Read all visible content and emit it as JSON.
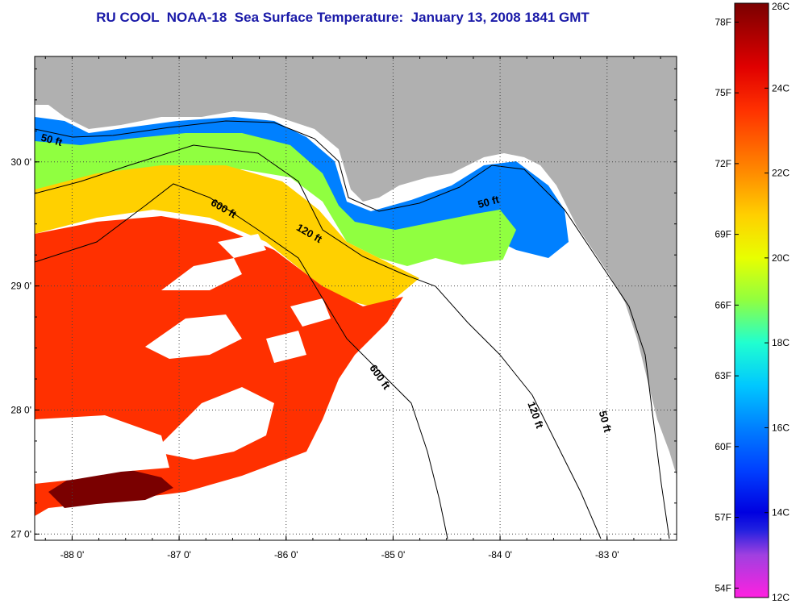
{
  "title": "RU COOL  NOAA-18  Sea Surface Temperature:  January 13, 2008 1841 GMT",
  "map": {
    "lon_range": [
      -88.35,
      -82.35
    ],
    "lat_range": [
      26.95,
      30.85
    ],
    "lon_ticks": [
      {
        "value": -88,
        "label": "-88 0'"
      },
      {
        "value": -87,
        "label": "-87 0'"
      },
      {
        "value": -86,
        "label": "-86 0'"
      },
      {
        "value": -85,
        "label": "-85 0'"
      },
      {
        "value": -84,
        "label": "-84 0'"
      },
      {
        "value": -83,
        "label": "-83 0'"
      }
    ],
    "lat_ticks": [
      {
        "value": 30,
        "label": "30 0'"
      },
      {
        "value": 29,
        "label": "29 0'"
      },
      {
        "value": 28,
        "label": "28 0'"
      },
      {
        "value": 27,
        "label": "27 0'"
      }
    ],
    "contour_labels": [
      {
        "text": "50 ft",
        "lon": -88.2,
        "lat": 30.15,
        "rotate": 15
      },
      {
        "text": "600 ft",
        "lon": -86.6,
        "lat": 29.6,
        "rotate": 30
      },
      {
        "text": "120 ft",
        "lon": -85.8,
        "lat": 29.4,
        "rotate": 30
      },
      {
        "text": "50 ft",
        "lon": -84.1,
        "lat": 29.65,
        "rotate": -15
      },
      {
        "text": "600 ft",
        "lon": -85.15,
        "lat": 28.25,
        "rotate": 55
      },
      {
        "text": "120 ft",
        "lon": -83.7,
        "lat": 27.95,
        "rotate": 70
      },
      {
        "text": "50 ft",
        "lon": -83.05,
        "lat": 27.9,
        "rotate": 75
      }
    ],
    "land_color": "#b0b0b0",
    "nodata_color": "#ffffff"
  },
  "colorbar": {
    "f_labels": [
      "78F",
      "75F",
      "72F",
      "69F",
      "66F",
      "63F",
      "60F",
      "57F",
      "54F"
    ],
    "c_labels": [
      "26C",
      "24C",
      "22C",
      "20C",
      "18C",
      "16C",
      "14C",
      "12C"
    ],
    "stops": [
      {
        "c": 26,
        "color": "#7a0000"
      },
      {
        "c": 24.5,
        "color": "#e00000"
      },
      {
        "c": 23.5,
        "color": "#ff3000"
      },
      {
        "c": 22,
        "color": "#ff8c00"
      },
      {
        "c": 21,
        "color": "#ffd000"
      },
      {
        "c": 20,
        "color": "#e8ff00"
      },
      {
        "c": 19,
        "color": "#90ff40"
      },
      {
        "c": 18,
        "color": "#20ffd0"
      },
      {
        "c": 17,
        "color": "#00c8ff"
      },
      {
        "c": 16,
        "color": "#0080ff"
      },
      {
        "c": 15,
        "color": "#0040ff"
      },
      {
        "c": 14,
        "color": "#0000e0"
      },
      {
        "c": 13.6,
        "color": "#2020e0"
      },
      {
        "c": 13,
        "color": "#a040e0"
      },
      {
        "c": 12,
        "color": "#ff20e0"
      }
    ]
  }
}
